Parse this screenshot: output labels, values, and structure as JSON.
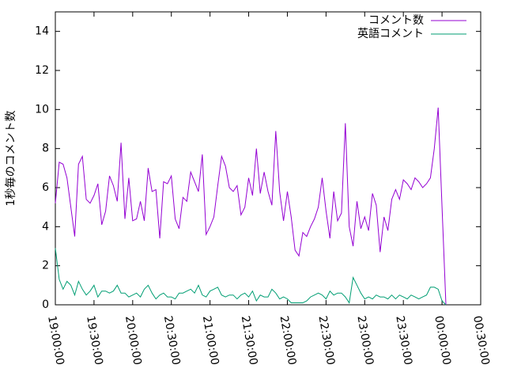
{
  "chart_data": {
    "type": "line",
    "y_label": "1秒毎のコメント数",
    "x": [
      "19:00:00",
      "19:03:00",
      "19:06:00",
      "19:09:00",
      "19:12:00",
      "19:15:00",
      "19:18:00",
      "19:21:00",
      "19:24:00",
      "19:27:00",
      "19:30:00",
      "19:33:00",
      "19:36:00",
      "19:39:00",
      "19:42:00",
      "19:45:00",
      "19:48:00",
      "19:51:00",
      "19:54:00",
      "19:57:00",
      "20:00:00",
      "20:03:00",
      "20:06:00",
      "20:09:00",
      "20:12:00",
      "20:15:00",
      "20:18:00",
      "20:21:00",
      "20:24:00",
      "20:27:00",
      "20:30:00",
      "20:33:00",
      "20:36:00",
      "20:39:00",
      "20:42:00",
      "20:45:00",
      "20:48:00",
      "20:51:00",
      "20:54:00",
      "20:57:00",
      "21:00:00",
      "21:03:00",
      "21:06:00",
      "21:09:00",
      "21:12:00",
      "21:15:00",
      "21:18:00",
      "21:21:00",
      "21:24:00",
      "21:27:00",
      "21:30:00",
      "21:33:00",
      "21:36:00",
      "21:39:00",
      "21:42:00",
      "21:45:00",
      "21:48:00",
      "21:51:00",
      "21:54:00",
      "21:57:00",
      "22:00:00",
      "22:03:00",
      "22:06:00",
      "22:09:00",
      "22:12:00",
      "22:15:00",
      "22:18:00",
      "22:21:00",
      "22:24:00",
      "22:27:00",
      "22:30:00",
      "22:33:00",
      "22:36:00",
      "22:39:00",
      "22:42:00",
      "22:45:00",
      "22:48:00",
      "22:51:00",
      "22:54:00",
      "22:57:00",
      "23:00:00",
      "23:03:00",
      "23:06:00",
      "23:09:00",
      "23:12:00",
      "23:15:00",
      "23:18:00",
      "23:21:00",
      "23:24:00",
      "23:27:00",
      "23:30:00",
      "23:33:00",
      "23:36:00",
      "23:39:00",
      "23:42:00",
      "23:45:00",
      "23:48:00",
      "23:51:00",
      "23:54:00",
      "23:57:00",
      "00:00:00",
      "00:03:00"
    ],
    "series": [
      {
        "name": "コメント数",
        "color": "#9400d3",
        "values": [
          5.2,
          7.3,
          7.2,
          6.5,
          5.0,
          3.5,
          7.2,
          7.6,
          5.4,
          5.2,
          5.6,
          6.2,
          4.1,
          4.8,
          6.6,
          6.1,
          5.3,
          8.3,
          4.4,
          6.5,
          4.3,
          4.4,
          5.3,
          4.3,
          7.0,
          5.8,
          5.9,
          3.4,
          6.3,
          6.2,
          6.6,
          4.4,
          3.9,
          5.5,
          5.3,
          6.8,
          6.3,
          5.8,
          7.7,
          3.6,
          4.0,
          4.5,
          6.1,
          7.6,
          7.1,
          6.0,
          5.8,
          6.1,
          4.6,
          5.0,
          6.5,
          5.6,
          8.0,
          5.7,
          6.8,
          5.8,
          5.1,
          8.9,
          5.8,
          4.3,
          5.8,
          4.5,
          2.8,
          2.5,
          3.7,
          3.5,
          4.0,
          4.4,
          5.0,
          6.5,
          4.8,
          3.4,
          5.8,
          4.3,
          4.7,
          9.3,
          4.0,
          3.0,
          5.3,
          3.9,
          4.5,
          3.8,
          5.7,
          5.1,
          2.7,
          4.5,
          3.8,
          5.4,
          5.9,
          5.4,
          6.4,
          6.2,
          5.9,
          6.5,
          6.3,
          6.0,
          6.2,
          6.5,
          8.0,
          10.1,
          5.0,
          0
        ]
      },
      {
        "name": "英語コメント",
        "color": "#009e73",
        "values": [
          2.9,
          1.3,
          0.8,
          1.2,
          1.0,
          0.5,
          1.2,
          0.8,
          0.5,
          0.7,
          1.0,
          0.4,
          0.7,
          0.7,
          0.6,
          0.7,
          1.0,
          0.6,
          0.6,
          0.4,
          0.5,
          0.6,
          0.4,
          0.8,
          1.0,
          0.6,
          0.3,
          0.5,
          0.6,
          0.4,
          0.4,
          0.3,
          0.6,
          0.6,
          0.7,
          0.8,
          0.6,
          1.0,
          0.5,
          0.4,
          0.7,
          0.8,
          0.9,
          0.5,
          0.4,
          0.5,
          0.5,
          0.3,
          0.5,
          0.6,
          0.4,
          0.7,
          0.2,
          0.5,
          0.4,
          0.4,
          0.8,
          0.6,
          0.3,
          0.4,
          0.3,
          0.1,
          0.1,
          0.1,
          0.1,
          0.2,
          0.4,
          0.5,
          0.6,
          0.5,
          0.3,
          0.7,
          0.5,
          0.6,
          0.6,
          0.4,
          0.1,
          1.4,
          1.0,
          0.6,
          0.3,
          0.4,
          0.3,
          0.5,
          0.4,
          0.4,
          0.3,
          0.5,
          0.3,
          0.5,
          0.4,
          0.3,
          0.5,
          0.4,
          0.3,
          0.4,
          0.5,
          0.9,
          0.9,
          0.8,
          0.2,
          0
        ]
      }
    ],
    "xlim": [
      "19:00:00",
      "00:30:00"
    ],
    "xticks": [
      "19:00:00",
      "19:30:00",
      "20:00:00",
      "20:30:00",
      "21:00:00",
      "21:30:00",
      "22:00:00",
      "22:30:00",
      "23:00:00",
      "23:30:00",
      "00:00:00",
      "00:30:00"
    ],
    "ylim": [
      0,
      15
    ],
    "yticks": [
      0,
      2,
      4,
      6,
      8,
      10,
      12,
      14
    ],
    "legend": "top-right"
  }
}
